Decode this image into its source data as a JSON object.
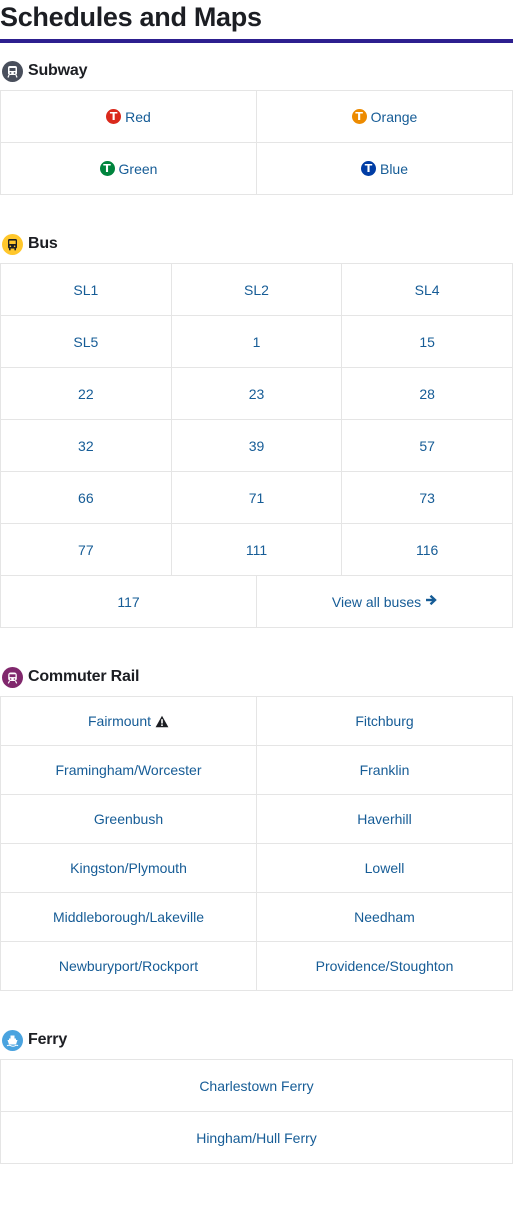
{
  "page_title": "Schedules and Maps",
  "colors": {
    "accent_rule": "#2d1f8f",
    "link": "#165c96",
    "red": "#da291c",
    "orange": "#ed8b00",
    "green": "#00843d",
    "blue": "#003da5",
    "subway_icon_bg": "#494f5c",
    "bus_icon_bg": "#ffc72c",
    "commuter_rail_icon_bg": "#80276c",
    "ferry_icon_bg": "#008eaa"
  },
  "subway": {
    "label": "Subway",
    "icon": "subway-icon",
    "lines": [
      {
        "label": "Red",
        "icon": "t-logo-icon"
      },
      {
        "label": "Orange",
        "icon": "t-logo-icon"
      },
      {
        "label": "Green",
        "icon": "t-logo-icon"
      },
      {
        "label": "Blue",
        "icon": "t-logo-icon"
      }
    ]
  },
  "bus": {
    "label": "Bus",
    "icon": "bus-icon",
    "routes": [
      "SL1",
      "SL2",
      "SL4",
      "SL5",
      "1",
      "15",
      "22",
      "23",
      "28",
      "32",
      "39",
      "57",
      "66",
      "71",
      "73",
      "77",
      "111",
      "116",
      "117"
    ],
    "view_all": "View all buses",
    "view_all_icon": "arrow-right-icon"
  },
  "commuter_rail": {
    "label": "Commuter Rail",
    "icon": "train-icon",
    "lines": [
      {
        "label": "Fairmount",
        "alert": true,
        "alert_icon": "alert-icon"
      },
      {
        "label": "Fitchburg"
      },
      {
        "label": "Framingham/Worcester"
      },
      {
        "label": "Franklin"
      },
      {
        "label": "Greenbush"
      },
      {
        "label": "Haverhill"
      },
      {
        "label": "Kingston/Plymouth"
      },
      {
        "label": "Lowell"
      },
      {
        "label": "Middleborough/Lakeville"
      },
      {
        "label": "Needham"
      },
      {
        "label": "Newburyport/Rockport"
      },
      {
        "label": "Providence/Stoughton"
      }
    ]
  },
  "ferry": {
    "label": "Ferry",
    "icon": "ferry-icon",
    "routes": [
      "Charlestown Ferry",
      "Hingham/Hull Ferry"
    ]
  }
}
